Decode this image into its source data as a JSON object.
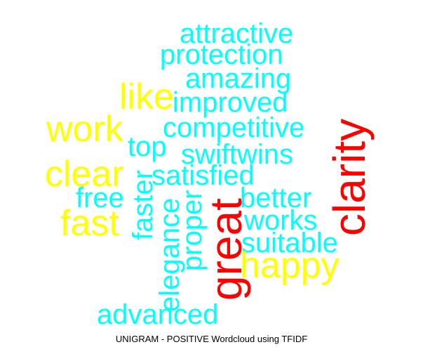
{
  "caption": "UNIGRAM - POSITIVE Wordcloud using TFIDF",
  "colors": {
    "tier_high": "#ff0000",
    "tier_mid": "#ffff00",
    "tier_low": "#00ffff"
  },
  "words": {
    "attractive": "attractive",
    "protection": "protection",
    "amazing": "amazing",
    "like": "like",
    "improved": "improved",
    "work": "work",
    "competitive": "competitive",
    "top": "top",
    "swiftwins": "swiftwins",
    "clear": "clear",
    "satisfied": "satisfied",
    "free": "free",
    "faster": "faster",
    "better": "better",
    "fast": "fast",
    "works": "works",
    "elegance": "elegance",
    "proper": "proper",
    "suitable": "suitable",
    "happy": "happy",
    "great": "great",
    "clarity": "clarity",
    "advanced": "advanced"
  }
}
